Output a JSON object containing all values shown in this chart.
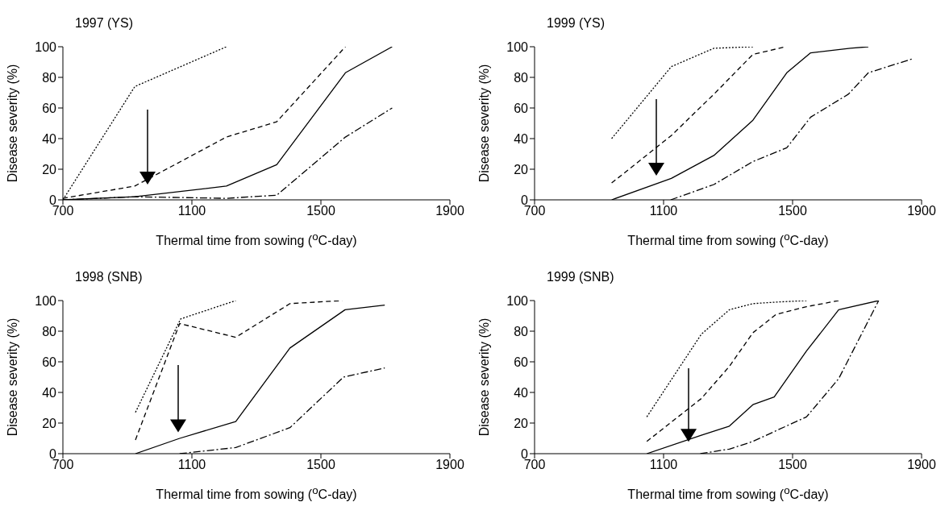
{
  "chart_data": [
    {
      "type": "line",
      "title": "1997 (YS)",
      "xlabel": "Thermal time from sowing ($^{o}$C-day)",
      "ylabel": "Disease severity (%)",
      "xlim": [
        700,
        1900
      ],
      "xticks": [
        700,
        1100,
        1500,
        1900
      ],
      "ylim": [
        0,
        100
      ],
      "yticks": [
        0,
        20,
        40,
        60,
        80,
        100
      ],
      "marker": "none",
      "series": [
        {
          "color": "#000000",
          "line_style": "dotted",
          "x": [
            700,
            923,
            1207
          ],
          "values": [
            0,
            74,
            100
          ]
        },
        {
          "color": "#000000",
          "line_style": "dashed",
          "x": [
            700,
            923,
            1207,
            1363,
            1576
          ],
          "values": [
            1,
            9,
            41,
            51,
            100
          ]
        },
        {
          "color": "#000000",
          "line_style": "solid",
          "x": [
            700,
            923,
            1207,
            1363,
            1576,
            1721
          ],
          "values": [
            0,
            2,
            9,
            23,
            83,
            100
          ]
        },
        {
          "color": "#000000",
          "line_style": "dashdot",
          "x": [
            700,
            923,
            1207,
            1363,
            1576,
            1721
          ],
          "values": [
            0,
            2,
            1,
            3,
            41,
            60
          ]
        }
      ]
    },
    {
      "type": "line",
      "title": "1999 (YS)",
      "xlabel": "Thermal time from sowing ($^{o}$C-day)",
      "ylabel": "Disease severity (%)",
      "xlim": [
        700,
        1900
      ],
      "xticks": [
        700,
        1100,
        1500,
        1900
      ],
      "ylim": [
        0,
        100
      ],
      "yticks": [
        0,
        20,
        40,
        60,
        80,
        100
      ],
      "marker": "none",
      "series": [
        {
          "color": "#000000",
          "line_style": "dotted",
          "x": [
            939,
            1124,
            1256,
            1377
          ],
          "values": [
            40,
            87,
            99,
            100
          ]
        },
        {
          "color": "#000000",
          "line_style": "dashed",
          "x": [
            939,
            1124,
            1256,
            1377,
            1479
          ],
          "values": [
            11,
            42,
            69,
            95,
            100
          ]
        },
        {
          "color": "#000000",
          "line_style": "solid",
          "x": [
            939,
            1124,
            1256,
            1377,
            1482,
            1556,
            1679,
            1735
          ],
          "values": [
            0,
            14,
            29,
            52,
            83,
            96,
            99,
            100
          ]
        },
        {
          "color": "#000000",
          "line_style": "dashdot",
          "x": [
            1122,
            1256,
            1377,
            1482,
            1556,
            1673,
            1735,
            1870
          ],
          "values": [
            0,
            10,
            25,
            34,
            54,
            69,
            83,
            92
          ]
        }
      ]
    },
    {
      "type": "line",
      "title": "1998 (SNB)",
      "xlabel": "Thermal time from sowing ($^{o}$C-day)",
      "ylabel": "Disease severity (%)",
      "xlim": [
        700,
        1900
      ],
      "xticks": [
        700,
        1100,
        1500,
        1900
      ],
      "ylim": [
        0,
        100
      ],
      "yticks": [
        0,
        20,
        40,
        60,
        80,
        100
      ],
      "marker": "none",
      "series": [
        {
          "color": "#000000",
          "line_style": "dotted",
          "x": [
            925,
            1065,
            1236
          ],
          "values": [
            27,
            88,
            100
          ]
        },
        {
          "color": "#000000",
          "line_style": "dashed",
          "x": [
            925,
            1062,
            1236,
            1404,
            1566
          ],
          "values": [
            9,
            85,
            76,
            98,
            100
          ]
        },
        {
          "color": "#000000",
          "line_style": "solid",
          "x": [
            925,
            1062,
            1236,
            1404,
            1575,
            1698
          ],
          "values": [
            0,
            10,
            21,
            69,
            94,
            97
          ]
        },
        {
          "color": "#000000",
          "line_style": "dashdot",
          "x": [
            1062,
            1236,
            1404,
            1570,
            1698
          ],
          "values": [
            0,
            4,
            17,
            50,
            56
          ]
        }
      ]
    },
    {
      "type": "line",
      "title": "1999 (SNB)",
      "xlabel": "Thermal time from sowing ($^{o}$C-day)",
      "ylabel": "Disease severity (%)",
      "xlim": [
        700,
        1900
      ],
      "xticks": [
        700,
        1100,
        1500,
        1900
      ],
      "ylim": [
        0,
        100
      ],
      "yticks": [
        0,
        20,
        40,
        60,
        80,
        100
      ],
      "marker": "none",
      "series": [
        {
          "color": "#000000",
          "line_style": "dotted",
          "x": [
            1048,
            1217,
            1304,
            1377,
            1449,
            1543
          ],
          "values": [
            24,
            78,
            94,
            98,
            99,
            100
          ]
        },
        {
          "color": "#000000",
          "line_style": "dashed",
          "x": [
            1048,
            1217,
            1304,
            1377,
            1449,
            1543,
            1643
          ],
          "values": [
            8,
            36,
            57,
            79,
            91,
            96,
            100
          ]
        },
        {
          "color": "#000000",
          "line_style": "solid",
          "x": [
            1048,
            1217,
            1304,
            1377,
            1443,
            1543,
            1643,
            1767
          ],
          "values": [
            0,
            12,
            18,
            32,
            37,
            67,
            94,
            100
          ]
        },
        {
          "color": "#000000",
          "line_style": "dashdot",
          "x": [
            1214,
            1304,
            1377,
            1449,
            1543,
            1643,
            1767
          ],
          "values": [
            0,
            3,
            8,
            15,
            24,
            49,
            100
          ]
        }
      ]
    }
  ]
}
